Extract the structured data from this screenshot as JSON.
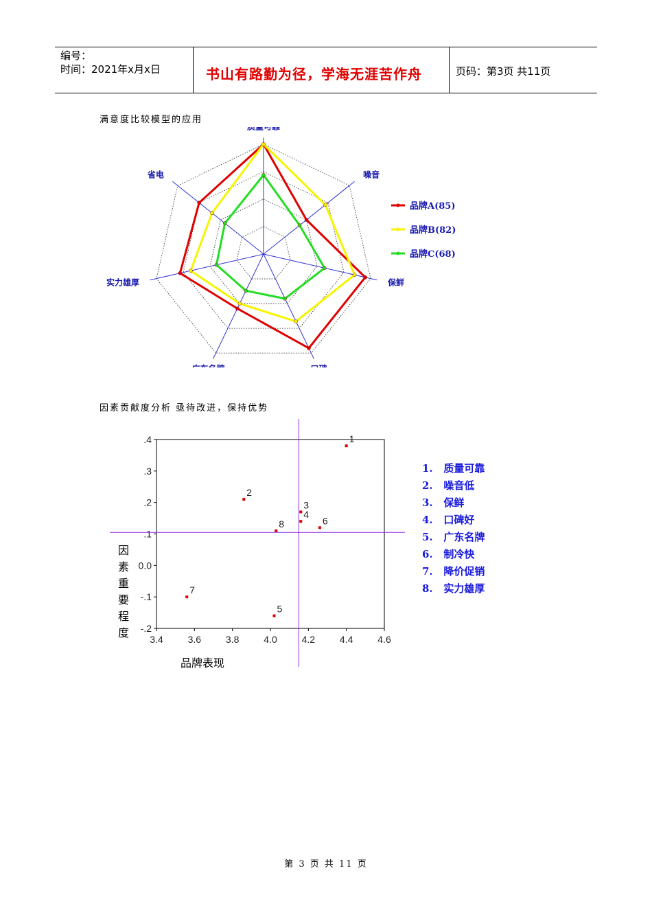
{
  "header": {
    "number_label": "编号：",
    "time_label": "时间：2021年x月x日",
    "motto": "书山有路勤为径，学海无涯苦作舟",
    "page_label": "页码：第3页  共11页"
  },
  "section1": {
    "title": "满意度比较模型的应用"
  },
  "section2": {
    "title": "因素贡献度分析    亟待改进，保持优势"
  },
  "chart_data": [
    {
      "type": "radar",
      "axes": [
        "质量可靠",
        "噪音",
        "保鲜",
        "口碑",
        "广东名牌",
        "实力雄厚",
        "省电"
      ],
      "rings": 4,
      "series": [
        {
          "name": "品牌A(85)",
          "color": "#e00000",
          "values": [
            1.0,
            0.5,
            0.95,
            0.95,
            0.55,
            0.78,
            0.75
          ]
        },
        {
          "name": "品牌B(82)",
          "color": "#f5f500",
          "values": [
            1.0,
            0.72,
            0.85,
            0.68,
            0.5,
            0.68,
            0.6
          ]
        },
        {
          "name": "品牌C(68)",
          "color": "#22dd22",
          "values": [
            0.72,
            0.42,
            0.57,
            0.45,
            0.37,
            0.44,
            0.45
          ]
        }
      ],
      "legend": "right"
    },
    {
      "type": "scatter",
      "xlabel": "品牌表现",
      "ylabel": "因素重要程度",
      "xlim": [
        3.4,
        4.6
      ],
      "ylim": [
        -0.2,
        0.4
      ],
      "xticks": [
        "3.4",
        "3.6",
        "3.8",
        "4.0",
        "4.2",
        "4.4",
        "4.6"
      ],
      "yticks": [
        ".4",
        ".3",
        ".2",
        ".1",
        "0.0",
        "-.1",
        "-.2"
      ],
      "reference_lines": {
        "x": 4.15,
        "y": 0.105
      },
      "point_color": "#e00000",
      "points": [
        {
          "label": "1",
          "x": 4.4,
          "y": 0.38
        },
        {
          "label": "2",
          "x": 3.86,
          "y": 0.21
        },
        {
          "label": "3",
          "x": 4.16,
          "y": 0.17
        },
        {
          "label": "4",
          "x": 4.16,
          "y": 0.14
        },
        {
          "label": "5",
          "x": 4.02,
          "y": -0.16
        },
        {
          "label": "6",
          "x": 4.26,
          "y": 0.12
        },
        {
          "label": "7",
          "x": 3.56,
          "y": -0.1
        },
        {
          "label": "8",
          "x": 4.03,
          "y": 0.11
        }
      ],
      "legend_items": [
        "1.   质量可靠",
        "2.   噪音低",
        "3.   保鲜",
        "4.   口碑好",
        "5.   广东名牌",
        "6.   制冷快",
        "7.   降价促销",
        "8.   实力雄厚"
      ]
    }
  ],
  "footer": {
    "text": "第 3 页 共 11 页"
  }
}
